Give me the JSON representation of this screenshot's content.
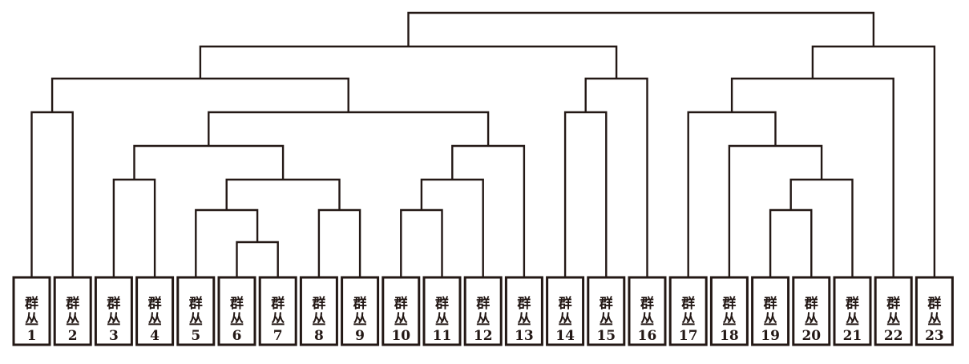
{
  "leaf_prefix": "群丛",
  "leaves": [
    "1",
    "2",
    "3",
    "4",
    "5",
    "6",
    "7",
    "8",
    "9",
    "10",
    "11",
    "12",
    "13",
    "14",
    "15",
    "16",
    "17",
    "18",
    "19",
    "20",
    "21",
    "22",
    "23"
  ],
  "line_color": "#231815",
  "merges": [
    {
      "id": "c1",
      "a": "6",
      "b": "7",
      "level": 1
    },
    {
      "id": "c2",
      "a": "5",
      "b": "c1",
      "level": 2
    },
    {
      "id": "c3",
      "a": "8",
      "b": "9",
      "level": 2
    },
    {
      "id": "c4",
      "a": "c2",
      "b": "c3",
      "level": 3
    },
    {
      "id": "c5",
      "a": "3",
      "b": "4",
      "level": 3
    },
    {
      "id": "c6",
      "a": "c5",
      "b": "c4",
      "level": 4
    },
    {
      "id": "c7",
      "a": "10",
      "b": "11",
      "level": 2
    },
    {
      "id": "c8",
      "a": "c7",
      "b": "12",
      "level": 3
    },
    {
      "id": "c9",
      "a": "c8",
      "b": "13",
      "level": 4
    },
    {
      "id": "c10",
      "a": "c6",
      "b": "c9",
      "level": 5
    },
    {
      "id": "c11",
      "a": "1",
      "b": "2",
      "level": 5
    },
    {
      "id": "c12",
      "a": "c11",
      "b": "c10",
      "level": 6
    },
    {
      "id": "c13",
      "a": "14",
      "b": "15",
      "level": 5
    },
    {
      "id": "c14",
      "a": "c13",
      "b": "16",
      "level": 6
    },
    {
      "id": "c15",
      "a": "c12",
      "b": "c14",
      "level": 7
    },
    {
      "id": "c16",
      "a": "19",
      "b": "20",
      "level": 2
    },
    {
      "id": "c17",
      "a": "c16",
      "b": "21",
      "level": 3
    },
    {
      "id": "c18",
      "a": "18",
      "b": "c17",
      "level": 4
    },
    {
      "id": "c19",
      "a": "17",
      "b": "c18",
      "level": 5
    },
    {
      "id": "c20",
      "a": "c19",
      "b": "22",
      "level": 6
    },
    {
      "id": "c21",
      "a": "c20",
      "b": "23",
      "level": 7
    },
    {
      "id": "c22",
      "a": "c15",
      "b": "c21",
      "level": 8
    }
  ]
}
